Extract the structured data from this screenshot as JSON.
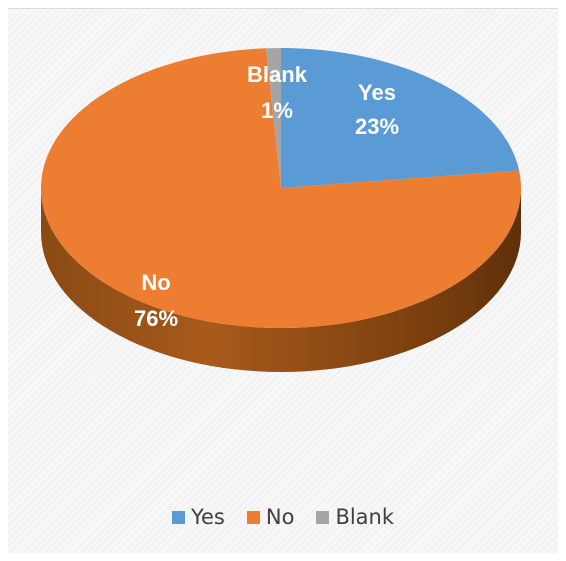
{
  "chart_data": {
    "type": "pie",
    "style": "3d-tilted",
    "categories": [
      "Yes",
      "No",
      "Blank"
    ],
    "values": [
      23,
      76,
      1
    ],
    "value_labels": [
      "23%",
      "76%",
      "1%"
    ],
    "colors": [
      "#5b9bd5",
      "#ed7d31",
      "#a5a5a5"
    ],
    "legend": {
      "position": "bottom",
      "items": [
        {
          "label": "Yes",
          "color": "#5b9bd5"
        },
        {
          "label": "No",
          "color": "#ed7d31"
        },
        {
          "label": "Blank",
          "color": "#a5a5a5"
        }
      ]
    }
  }
}
